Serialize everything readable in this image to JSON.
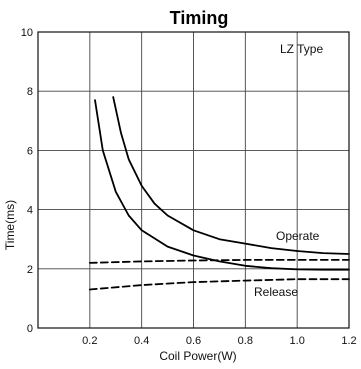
{
  "chart_data": {
    "type": "line",
    "title": "Timing",
    "xlabel": "Coil Power(W)",
    "ylabel": "Time(ms)",
    "xlim": [
      0,
      1.2
    ],
    "ylim": [
      0,
      10
    ],
    "x_ticks": [
      0.2,
      0.4,
      0.6,
      0.8,
      1.0,
      1.2
    ],
    "x_tick_labels": [
      "0.2",
      "0.4",
      "0.6",
      "0.8",
      "1.0",
      "1.2"
    ],
    "y_ticks": [
      0,
      2,
      4,
      6,
      8,
      10
    ],
    "y_tick_labels": [
      "0",
      "2",
      "4",
      "6",
      "8",
      "10"
    ],
    "grid": true,
    "annotations": {
      "type_label": "LZ Type",
      "operate_label": "Operate",
      "release_label": "Release"
    },
    "series": [
      {
        "style": "solid",
        "x": [
          0.22,
          0.25,
          0.3,
          0.35,
          0.4,
          0.5,
          0.6,
          0.7,
          0.8,
          0.9,
          1.0,
          1.1,
          1.2
        ],
        "y": [
          7.7,
          6.0,
          4.6,
          3.8,
          3.3,
          2.75,
          2.45,
          2.25,
          2.1,
          2.02,
          1.98,
          1.97,
          1.97
        ]
      },
      {
        "style": "solid",
        "x": [
          0.29,
          0.32,
          0.35,
          0.4,
          0.45,
          0.5,
          0.6,
          0.7,
          0.8,
          0.9,
          1.0,
          1.1,
          1.2
        ],
        "y": [
          7.8,
          6.6,
          5.7,
          4.8,
          4.2,
          3.8,
          3.3,
          3.0,
          2.85,
          2.7,
          2.6,
          2.53,
          2.5
        ]
      },
      {
        "style": "dashed",
        "x": [
          0.2,
          0.4,
          0.6,
          0.8,
          1.0,
          1.2
        ],
        "y": [
          2.2,
          2.25,
          2.28,
          2.3,
          2.3,
          2.3
        ]
      },
      {
        "style": "dashed",
        "x": [
          0.2,
          0.4,
          0.6,
          0.8,
          1.0,
          1.2
        ],
        "y": [
          1.3,
          1.45,
          1.55,
          1.6,
          1.65,
          1.65
        ]
      }
    ]
  }
}
